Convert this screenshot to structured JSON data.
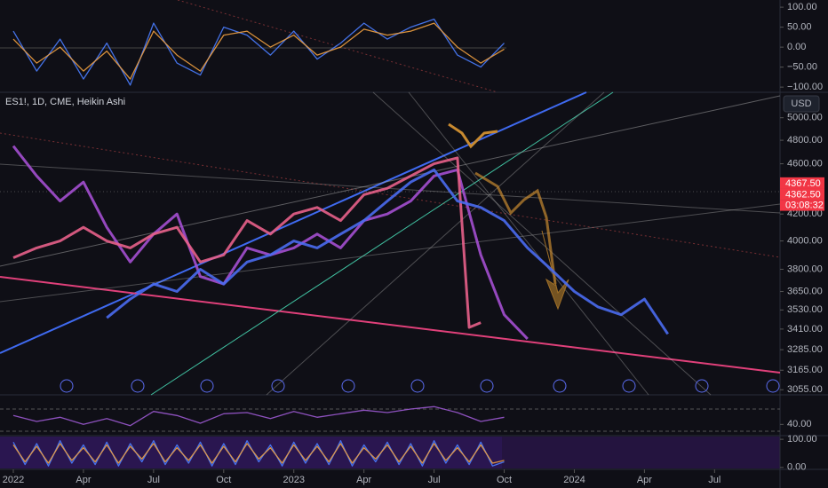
{
  "chart_data": [
    {
      "type": "line",
      "xlim": [
        -0.57,
        32.8
      ],
      "ylim": [
        -113,
        118
      ],
      "yticks": [
        {
          "value": 100,
          "label": "100.00"
        },
        {
          "value": 50,
          "label": "50.00"
        },
        {
          "value": 0,
          "label": "0.00"
        },
        {
          "value": -50,
          "label": "−50.00"
        },
        {
          "value": -100,
          "label": "−100.00"
        }
      ],
      "x": [
        0,
        1,
        2,
        3,
        4,
        5,
        6,
        7,
        8,
        9,
        10,
        11,
        12,
        13,
        14,
        15,
        16,
        17,
        18,
        19,
        20,
        21
      ],
      "series": [
        {
          "color": "#4a7dff",
          "values": [
            40,
            -60,
            20,
            -80,
            10,
            -95,
            60,
            -40,
            -70,
            50,
            30,
            -20,
            40,
            -30,
            10,
            60,
            20,
            50,
            70,
            -20,
            -50,
            10
          ]
        },
        {
          "color": "#f0a040",
          "values": [
            20,
            -40,
            0,
            -60,
            -10,
            -80,
            40,
            -20,
            -60,
            30,
            40,
            0,
            30,
            -20,
            0,
            45,
            30,
            40,
            60,
            0,
            -40,
            -5
          ]
        }
      ]
    },
    {
      "type": "line",
      "title": "ES1!, 1D, CME, Heikin Ashi",
      "currency": "USD",
      "log_scale": true,
      "xlim": [
        -0.57,
        32.8
      ],
      "ylim": [
        3027,
        5236
      ],
      "xticks": [
        {
          "value": 0,
          "label": "2022"
        },
        {
          "value": 3,
          "label": "Apr"
        },
        {
          "value": 6,
          "label": "Jul"
        },
        {
          "value": 9,
          "label": "Oct"
        },
        {
          "value": 12,
          "label": "2023"
        },
        {
          "value": 15,
          "label": "Apr"
        },
        {
          "value": 18,
          "label": "Jul"
        },
        {
          "value": 21,
          "label": "Oct"
        },
        {
          "value": 24,
          "label": "2024"
        },
        {
          "value": 27,
          "label": "Apr"
        },
        {
          "value": 30,
          "label": "Jul"
        }
      ],
      "yticks": [
        {
          "value": 5000,
          "label": "5000.00"
        },
        {
          "value": 4800,
          "label": "4800.00"
        },
        {
          "value": 4600,
          "label": "4600.00"
        },
        {
          "value": 4200,
          "label": "4200.00"
        },
        {
          "value": 4000,
          "label": "4000.00"
        },
        {
          "value": 3800,
          "label": "3800.00"
        },
        {
          "value": 3650,
          "label": "3650.00"
        },
        {
          "value": 3530,
          "label": "3530.00"
        },
        {
          "value": 3410,
          "label": "3410.00"
        },
        {
          "value": 3285,
          "label": "3285.00"
        },
        {
          "value": 3165,
          "label": "3165.00"
        },
        {
          "value": 3055,
          "label": "3055.00"
        }
      ],
      "series": [
        {
          "color": "#a44fd0",
          "x": [
            0,
            1,
            2,
            3,
            4,
            5,
            6,
            7,
            8,
            9,
            10,
            11,
            12,
            13,
            14,
            15,
            16,
            17,
            18,
            19,
            20,
            21,
            22
          ],
          "values": [
            4750,
            4500,
            4300,
            4450,
            4100,
            3850,
            4050,
            4200,
            3750,
            3700,
            3950,
            3900,
            3950,
            4050,
            3950,
            4150,
            4200,
            4300,
            4500,
            4550,
            3900,
            3500,
            3350
          ]
        },
        {
          "color": "#e8608a",
          "x": [
            0,
            1,
            2,
            3,
            4,
            5,
            6,
            7,
            8,
            9,
            10,
            11,
            12,
            13,
            14,
            15,
            16,
            17,
            18,
            19,
            19.5,
            20
          ],
          "values": [
            3880,
            3950,
            4000,
            4100,
            4000,
            3950,
            4050,
            4100,
            3850,
            3900,
            4150,
            4050,
            4200,
            4250,
            4150,
            4350,
            4400,
            4500,
            4600,
            4650,
            3420,
            3450
          ]
        },
        {
          "color": "#4a6cf0",
          "x": [
            4,
            5,
            6,
            7,
            8,
            9,
            10,
            11,
            12,
            13,
            14,
            15,
            16,
            17,
            18,
            19,
            20,
            21,
            22,
            23,
            24,
            25,
            26,
            27,
            28
          ],
          "values": [
            3480,
            3600,
            3700,
            3650,
            3800,
            3700,
            3850,
            3900,
            4000,
            3950,
            4050,
            4150,
            4300,
            4450,
            4550,
            4300,
            4250,
            4150,
            3950,
            3800,
            3650,
            3550,
            3500,
            3600,
            3380
          ]
        }
      ],
      "price_markers": [
        {
          "value": 4367.5,
          "label": "4367.50"
        },
        {
          "value": 4362.5,
          "label": "4362.50"
        }
      ],
      "countdown": "03:08:32"
    },
    {
      "type": "line",
      "xlim": [
        -0.57,
        32.8
      ],
      "ylim": [
        21,
        90
      ],
      "yticks": [
        {
          "value": 40,
          "label": "40.00"
        }
      ],
      "x": [
        0,
        1,
        2,
        3,
        4,
        5,
        6,
        7,
        8,
        9,
        10,
        11,
        12,
        13,
        14,
        15,
        16,
        17,
        18,
        19,
        20,
        21
      ],
      "series": [
        {
          "color": "#9b59d0",
          "values": [
            55,
            45,
            52,
            40,
            50,
            38,
            62,
            55,
            42,
            58,
            60,
            50,
            62,
            52,
            58,
            64,
            60,
            66,
            70,
            60,
            45,
            52
          ]
        }
      ]
    },
    {
      "type": "line",
      "xlim": [
        -0.57,
        32.8
      ],
      "ylim": [
        -7,
        113
      ],
      "yticks": [
        {
          "value": 100,
          "label": "100.00"
        },
        {
          "value": 0,
          "label": "0.00"
        }
      ],
      "x": [
        0,
        0.5,
        1,
        1.5,
        2,
        2.5,
        3,
        3.5,
        4,
        4.5,
        5,
        5.5,
        6,
        6.5,
        7,
        7.5,
        8,
        8.5,
        9,
        9.5,
        10,
        10.5,
        11,
        11.5,
        12,
        12.5,
        13,
        13.5,
        14,
        14.5,
        15,
        15.5,
        16,
        16.5,
        17,
        17.5,
        18,
        18.5,
        19,
        19.5,
        20,
        20.5,
        21
      ],
      "series": [
        {
          "color": "#4a7dff",
          "values": [
            90,
            10,
            85,
            5,
            95,
            15,
            80,
            10,
            90,
            5,
            85,
            20,
            95,
            10,
            80,
            15,
            90,
            5,
            85,
            10,
            95,
            20,
            80,
            5,
            90,
            15,
            85,
            10,
            95,
            5,
            80,
            20,
            90,
            10,
            85,
            5,
            95,
            15,
            80,
            10,
            90,
            5,
            20
          ]
        },
        {
          "color": "#f0a040",
          "values": [
            80,
            20,
            75,
            15,
            85,
            25,
            70,
            20,
            80,
            15,
            75,
            30,
            85,
            20,
            70,
            25,
            80,
            15,
            75,
            20,
            85,
            30,
            70,
            15,
            80,
            25,
            75,
            20,
            85,
            15,
            70,
            30,
            80,
            20,
            75,
            15,
            85,
            25,
            70,
            20,
            80,
            15,
            25
          ]
        }
      ]
    }
  ]
}
